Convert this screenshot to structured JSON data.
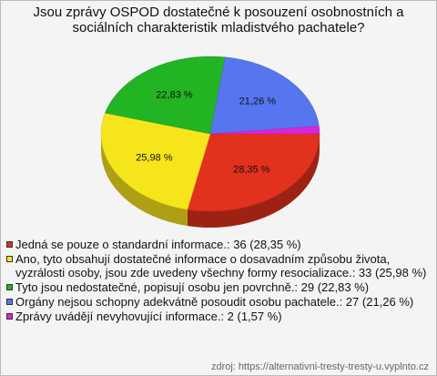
{
  "chart_data": {
    "type": "pie",
    "title": "Jsou zprávy OSPOD dostatečné k posouzení osobnostních a sociálních charakteristik mladistvého pachatele?",
    "categories": [
      "Jedná se pouze o standardní informace.: 36 (28,35 %)",
      "Ano, tyto obsahují dostatečné informace o dosavadním způsobu života, vyzrálosti osoby, jsou zde uvedeny všechny formy resocializace.: 33 (25,98 %)",
      "Tyto jsou nedostatečné, popisují osobu jen povrchně.: 29 (22,83 %)",
      "Orgány nejsou schopny adekvátně posoudit osobu pachatele.: 27 (21,26 %)",
      "Zprávy uvádějí nevyhovující informace.: 2 (1,57 %)"
    ],
    "values": [
      28.35,
      25.98,
      22.83,
      21.26,
      1.57
    ],
    "value_labels": [
      "28,35 %",
      "25,98 %",
      "22,83 %",
      "21,26 %",
      null
    ],
    "colors": [
      "#e2311d",
      "#f7e51c",
      "#23b423",
      "#5576ee",
      "#d826d8"
    ],
    "source": "zdroj: https://alternativni-tresty-tresty-u.vyplnto.cz"
  }
}
